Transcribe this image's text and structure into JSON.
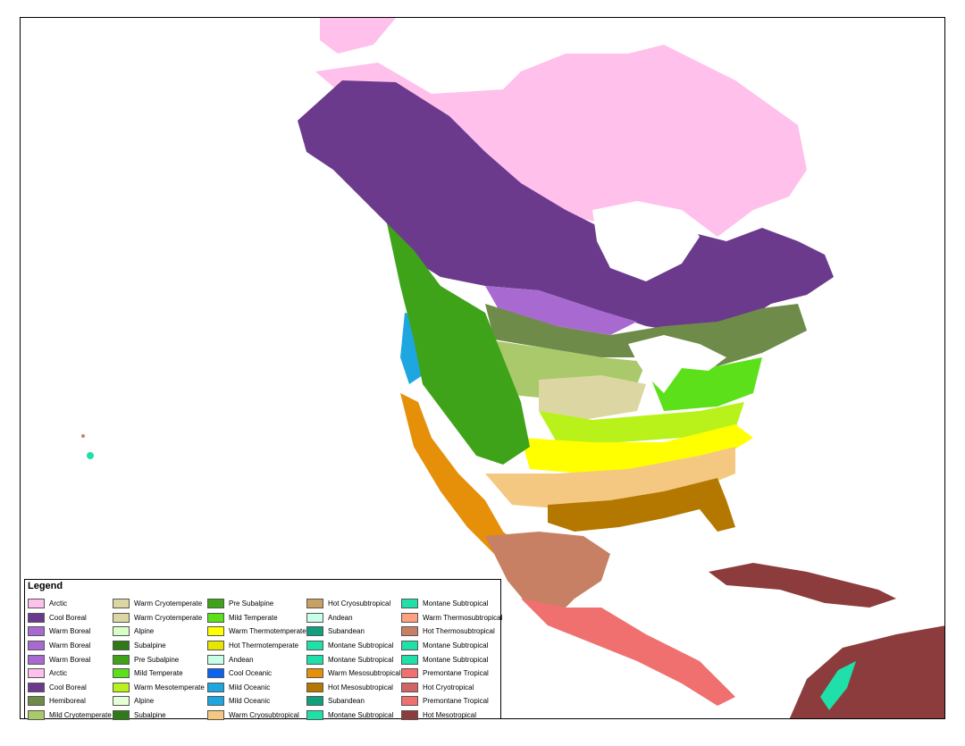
{
  "legend": {
    "title": "Legend",
    "columns": [
      [
        {
          "label": "Arctic",
          "color": "#FFC0EC"
        },
        {
          "label": "Cool Boreal",
          "color": "#6B3A8C"
        },
        {
          "label": "Warm Boreal",
          "color": "#A86AD0"
        },
        {
          "label": "Warm Boreal",
          "color": "#A86AD0"
        },
        {
          "label": "Warm Boreal",
          "color": "#A86AD0"
        },
        {
          "label": "Arctic",
          "color": "#FFC0EC"
        },
        {
          "label": "Cool Boreal",
          "color": "#6B3A8C"
        },
        {
          "label": "Hemiboreal",
          "color": "#6E8B4A"
        },
        {
          "label": "Mild Cryotemperate",
          "color": "#A9C96A"
        }
      ],
      [
        {
          "label": "Warm Cryotemperate",
          "color": "#DCD7A2"
        },
        {
          "label": "Warm Cryotemperate",
          "color": "#DCD7A2"
        },
        {
          "label": "Alpine",
          "color": "#D8FFC8"
        },
        {
          "label": "Subalpine",
          "color": "#2E7A16"
        },
        {
          "label": "Pre Subalpine",
          "color": "#3FA31A"
        },
        {
          "label": "Mild Temperate",
          "color": "#5CE01A"
        },
        {
          "label": "Warm Mesotemperate",
          "color": "#B8F21A"
        },
        {
          "label": "Alpine",
          "color": "#E6FFD8"
        },
        {
          "label": "Subalpine",
          "color": "#2E7A16"
        }
      ],
      [
        {
          "label": "Pre Subalpine",
          "color": "#3FA31A"
        },
        {
          "label": "Mild Temperate",
          "color": "#5CE01A"
        },
        {
          "label": "Warm Thermotemperate",
          "color": "#FFFF00"
        },
        {
          "label": "Hot Thermotemperate",
          "color": "#E6E600"
        },
        {
          "label": "Andean",
          "color": "#C8FFE8"
        },
        {
          "label": "Cool Oceanic",
          "color": "#0A64F0"
        },
        {
          "label": "Mild Oceanic",
          "color": "#1EA6E0"
        },
        {
          "label": "Mild Oceanic",
          "color": "#1EA6E0"
        },
        {
          "label": "Warm Cryosubtropical",
          "color": "#F5C882"
        }
      ],
      [
        {
          "label": "Hot Cryosubtropical",
          "color": "#C8A064"
        },
        {
          "label": "Andean",
          "color": "#C8FFE8"
        },
        {
          "label": "Subandean",
          "color": "#10A07E"
        },
        {
          "label": "Montane Subtropical",
          "color": "#1EE0A8"
        },
        {
          "label": "Montane Subtropical",
          "color": "#1EE0A8"
        },
        {
          "label": "Warm Mesosubtropical",
          "color": "#E6900A"
        },
        {
          "label": "Hot Mesosubtropical",
          "color": "#B47800"
        },
        {
          "label": "Subandean",
          "color": "#10A07E"
        },
        {
          "label": "Montane Subtropical",
          "color": "#1EE0A8"
        }
      ],
      [
        {
          "label": "Montane Subtropical",
          "color": "#1EE0A8"
        },
        {
          "label": "Warm Thermosubtropical",
          "color": "#FFA080"
        },
        {
          "label": "Hot Thermosubtropical",
          "color": "#C88064"
        },
        {
          "label": "Montane Subtropical",
          "color": "#1EE0A8"
        },
        {
          "label": "Montane Subtropical",
          "color": "#1EE0A8"
        },
        {
          "label": "Premontane Tropical",
          "color": "#F07070"
        },
        {
          "label": "Hot Cryotropical",
          "color": "#D26464"
        },
        {
          "label": "Premontane Tropical",
          "color": "#F07070"
        },
        {
          "label": "Hot Mesotropical",
          "color": "#8C3C3C"
        }
      ]
    ]
  }
}
